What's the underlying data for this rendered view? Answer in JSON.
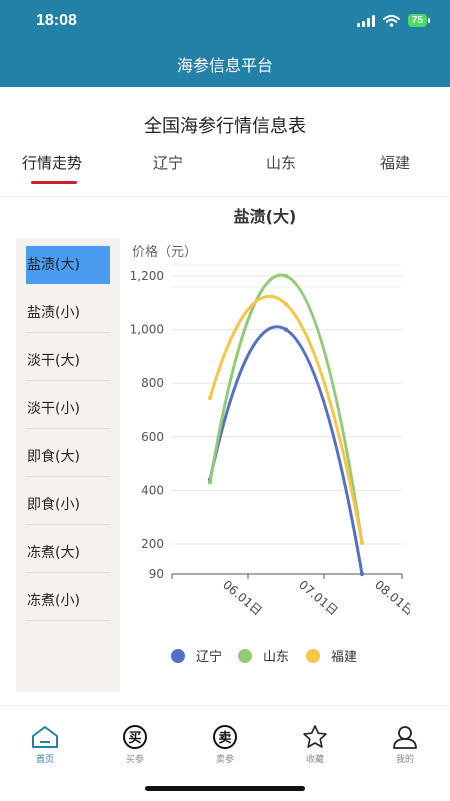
{
  "status": {
    "time": "18:08",
    "battery": "75"
  },
  "app_title": "海参信息平台",
  "page_heading": "全国海参行情信息表",
  "tabs": [
    "行情走势",
    "辽宁",
    "山东",
    "福建"
  ],
  "sidebar": [
    "盐渍(大)",
    "盐渍(小)",
    "淡干(大)",
    "淡干(小)",
    "即食(大)",
    "即食(小)",
    "冻煮(大)",
    "冻煮(小)"
  ],
  "chart_data": {
    "type": "line",
    "title": "盐渍(大)",
    "ylabel": "价格（元）",
    "categories": [
      "06.01日",
      "07.01日",
      "08.01日"
    ],
    "yticks": [
      "1,200",
      "1,000",
      "800",
      "600",
      "400",
      "200",
      "90"
    ],
    "ylim": [
      90,
      1200
    ],
    "series": [
      {
        "name": "辽宁",
        "color": "#5470c6",
        "values": [
          440,
          1000,
          90
        ]
      },
      {
        "name": "山东",
        "color": "#91cc75",
        "values": [
          430,
          1200,
          205
        ]
      },
      {
        "name": "福建",
        "color": "#f6c649",
        "values": [
          745,
          1095,
          205
        ]
      }
    ],
    "legend_position": "bottom"
  },
  "bottom_nav": [
    {
      "label": "首页",
      "icon": "home-icon"
    },
    {
      "label": "买参",
      "icon": "buy-icon",
      "glyph": "买"
    },
    {
      "label": "卖参",
      "icon": "sell-icon",
      "glyph": "卖"
    },
    {
      "label": "收藏",
      "icon": "star-icon"
    },
    {
      "label": "我的",
      "icon": "user-icon"
    }
  ]
}
